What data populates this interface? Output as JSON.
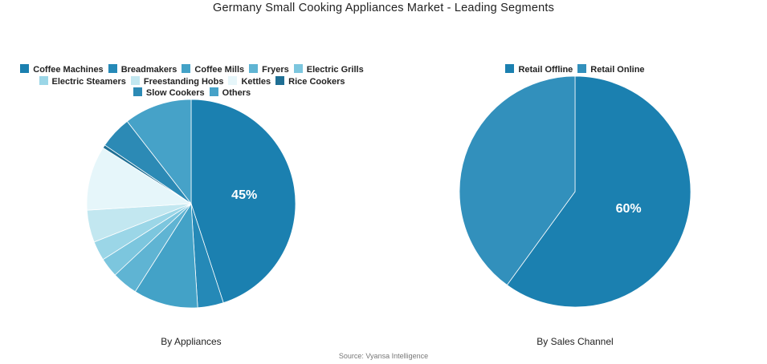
{
  "title": "Germany Small Cooking Appliances Market - Leading Segments",
  "source": "Source: Vyansa Intelligence",
  "chart_data": [
    {
      "type": "pie",
      "caption": "By Appliances",
      "legend_placement": "top",
      "slices": [
        {
          "label": "Coffee Machines",
          "value": 45,
          "color": "#1b80b0",
          "data_label": "45%"
        },
        {
          "label": "Breadmakers",
          "value": 4,
          "color": "#2589b7"
        },
        {
          "label": "Coffee Mills",
          "value": 10,
          "color": "#43a2c7"
        },
        {
          "label": "Fryers",
          "value": 4,
          "color": "#5fb4d3"
        },
        {
          "label": "Electric Grills",
          "value": 3,
          "color": "#7cc6de"
        },
        {
          "label": "Electric Steamers",
          "value": 3,
          "color": "#9bd6e7"
        },
        {
          "label": "Freestanding Hobs",
          "value": 5,
          "color": "#c2e7f0"
        },
        {
          "label": "Kettles",
          "value": 10,
          "color": "#e6f6fa"
        },
        {
          "label": "Rice Cookers",
          "value": 0.5,
          "color": "#1f6f94"
        },
        {
          "label": "Slow Cookers",
          "value": 5,
          "color": "#2c8ab5"
        },
        {
          "label": "Others",
          "value": 10.5,
          "color": "#46a2c8"
        }
      ]
    },
    {
      "type": "pie",
      "caption": "By Sales Channel",
      "legend_placement": "top",
      "slices": [
        {
          "label": "Retail Offline",
          "value": 60,
          "color": "#1b80b0",
          "data_label": "60%"
        },
        {
          "label": "Retail Online",
          "value": 40,
          "color": "#3290bc"
        }
      ]
    }
  ]
}
